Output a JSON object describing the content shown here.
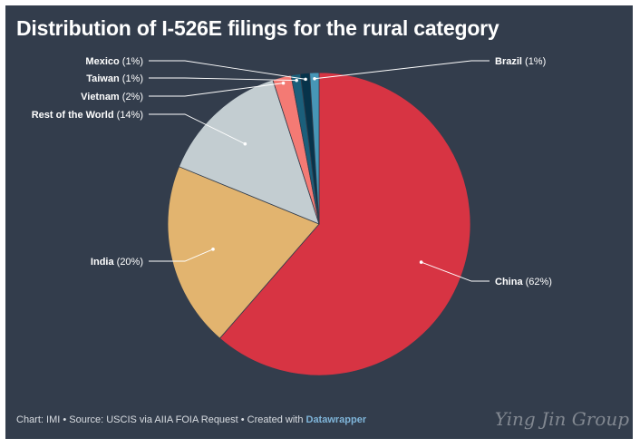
{
  "chart_data": {
    "type": "pie",
    "title": "Distribution of I-526E filings for the rural category",
    "slices": [
      {
        "label": "China",
        "value": 62,
        "display": "(62%)",
        "color": "#d73443"
      },
      {
        "label": "India",
        "value": 20,
        "display": "(20%)",
        "color": "#e2b46f"
      },
      {
        "label": "Rest of the World",
        "value": 14,
        "display": "(14%)",
        "color": "#c3cdd1"
      },
      {
        "label": "Vietnam",
        "value": 2,
        "display": "(2%)",
        "color": "#f47a74"
      },
      {
        "label": "Taiwan",
        "value": 1,
        "display": "(1%)",
        "color": "#1b5f7b"
      },
      {
        "label": "Mexico",
        "value": 1,
        "display": "(1%)",
        "color": "#07334a"
      },
      {
        "label": "Brazil",
        "value": 1,
        "display": "(1%)",
        "color": "#4796b6"
      }
    ]
  },
  "footer": {
    "text": "Chart: IMI • Source: USCIS via AIIA FOIA Request • Created with ",
    "link": "Datawrapper"
  },
  "watermark": "Ying Jin Group"
}
